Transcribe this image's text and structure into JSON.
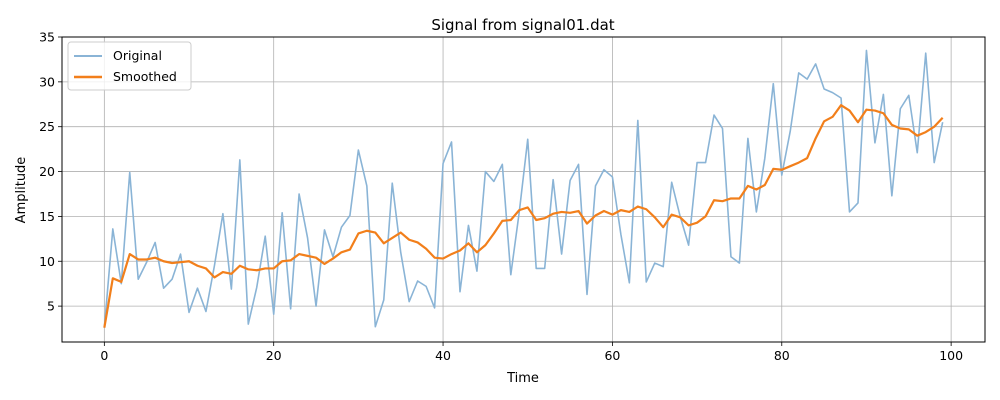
{
  "chart_data": {
    "type": "line",
    "title": "Signal from signal01.dat",
    "xlabel": "Time",
    "ylabel": "Amplitude",
    "xlim": [
      -5,
      104
    ],
    "ylim": [
      1,
      35
    ],
    "xticks": [
      0,
      20,
      40,
      60,
      80,
      100
    ],
    "yticks": [
      5,
      10,
      15,
      20,
      25,
      30,
      35
    ],
    "grid": true,
    "legend_position": "top-left",
    "series": [
      {
        "name": "Original",
        "color": "#8ab4d6",
        "values": [
          2.6,
          13.6,
          7.5,
          19.9,
          8.0,
          9.9,
          12.1,
          7.0,
          8.0,
          10.8,
          4.3,
          7.0,
          4.4,
          9.5,
          15.3,
          6.9,
          21.3,
          3.0,
          7.1,
          12.8,
          4.1,
          15.4,
          4.7,
          17.5,
          12.6,
          5.0,
          13.5,
          10.5,
          13.8,
          15.1,
          22.4,
          18.4,
          2.7,
          5.7,
          18.7,
          11.0,
          5.5,
          7.8,
          7.2,
          4.8,
          20.9,
          23.3,
          6.6,
          14.0,
          8.9,
          20.0,
          18.9,
          20.8,
          8.5,
          15.5,
          23.6,
          9.2,
          9.2,
          19.1,
          10.8,
          19.0,
          20.8,
          6.3,
          18.4,
          20.2,
          19.4,
          13.0,
          7.6,
          25.7,
          7.7,
          9.8,
          9.4,
          18.8,
          15.0,
          11.8,
          21.0,
          21.0,
          26.3,
          24.8,
          10.5,
          9.8,
          23.7,
          15.5,
          21.5,
          29.8,
          19.6,
          24.5,
          31.0,
          30.3,
          32.0,
          29.2,
          28.8,
          28.2,
          15.5,
          16.5,
          33.5,
          23.2,
          28.6,
          17.3,
          27.0,
          28.5,
          22.1,
          33.2,
          21.0,
          25.5
        ]
      },
      {
        "name": "Smoothed",
        "color": "#f27f1b",
        "values": [
          2.6,
          8.1,
          7.7,
          10.8,
          10.2,
          10.2,
          10.4,
          10.0,
          9.8,
          9.9,
          10.0,
          9.5,
          9.2,
          8.2,
          8.8,
          8.6,
          9.5,
          9.1,
          9.0,
          9.2,
          9.2,
          10.0,
          10.1,
          10.8,
          10.6,
          10.4,
          9.7,
          10.3,
          11.0,
          11.3,
          13.1,
          13.4,
          13.2,
          12.0,
          12.6,
          13.2,
          12.4,
          12.1,
          11.4,
          10.4,
          10.3,
          10.8,
          11.2,
          12.0,
          11.0,
          11.8,
          13.1,
          14.5,
          14.6,
          15.7,
          16.0,
          14.6,
          14.8,
          15.3,
          15.5,
          15.4,
          15.6,
          14.2,
          15.1,
          15.6,
          15.2,
          15.7,
          15.5,
          16.1,
          15.8,
          14.9,
          13.8,
          15.2,
          14.9,
          14.0,
          14.3,
          15.0,
          16.8,
          16.7,
          17.0,
          17.0,
          18.4,
          18.0,
          18.5,
          20.3,
          20.2,
          20.6,
          21.0,
          21.5,
          23.7,
          25.6,
          26.1,
          27.4,
          26.8,
          25.5,
          26.9,
          26.8,
          26.5,
          25.2,
          24.8,
          24.7,
          24.0,
          24.4,
          25.0,
          26.0
        ]
      }
    ]
  }
}
